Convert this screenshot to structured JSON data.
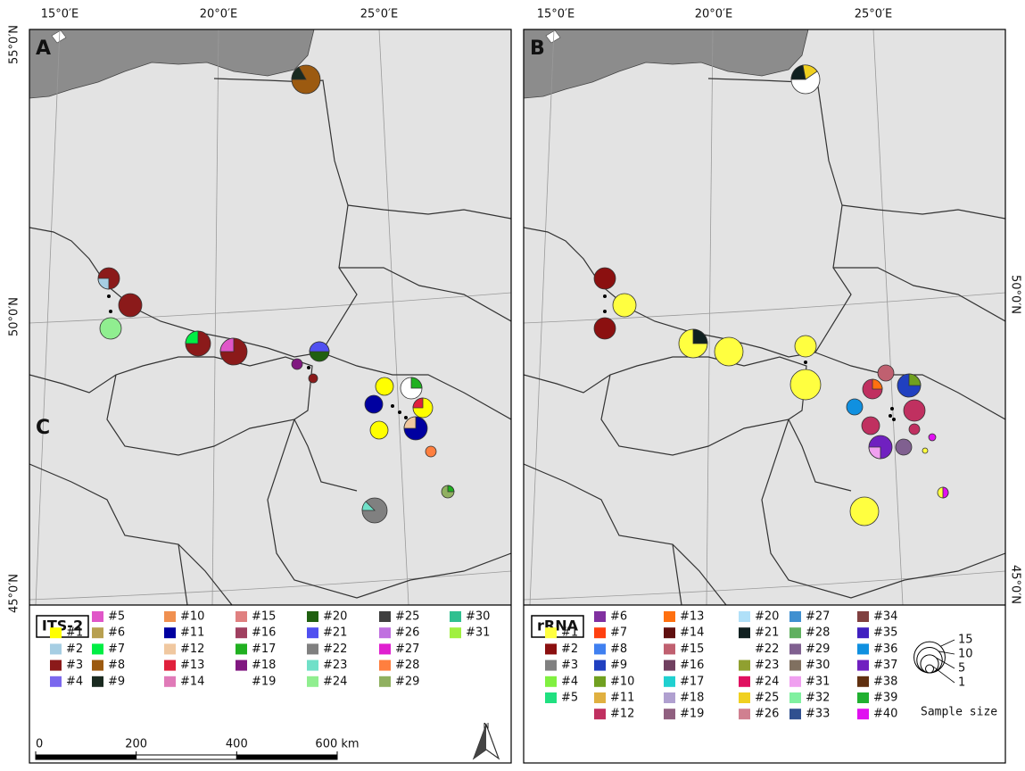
{
  "panels": [
    {
      "label": "A",
      "legend": {
        "title": "ITS-2",
        "items": [
          {
            "label": "#1",
            "color": "#ffff00"
          },
          {
            "label": "#2",
            "color": "#a6cee3"
          },
          {
            "label": "#3",
            "color": "#8b1a1a"
          },
          {
            "label": "#4",
            "color": "#7b68ee"
          },
          {
            "label": "#5",
            "color": "#e056c8"
          },
          {
            "label": "#6",
            "color": "#b8a050"
          },
          {
            "label": "#7",
            "color": "#00ee44"
          },
          {
            "label": "#8",
            "color": "#9c5a10"
          },
          {
            "label": "#9",
            "color": "#1a2a20"
          },
          {
            "label": "#10",
            "color": "#f09050"
          },
          {
            "label": "#11",
            "color": "#0000a0"
          },
          {
            "label": "#12",
            "color": "#f0c8a0"
          },
          {
            "label": "#13",
            "color": "#e0203c"
          },
          {
            "label": "#14",
            "color": "#e07ab8"
          },
          {
            "label": "#15",
            "color": "#e08080"
          },
          {
            "label": "#16",
            "color": "#a04060"
          },
          {
            "label": "#17",
            "color": "#20b020"
          },
          {
            "label": "#18",
            "color": "#801880"
          },
          {
            "label": "#19",
            "color": "#ffffff"
          },
          {
            "label": "#20",
            "color": "#206010"
          },
          {
            "label": "#21",
            "color": "#5050f0"
          },
          {
            "label": "#22",
            "color": "#808080"
          },
          {
            "label": "#23",
            "color": "#70e0c8"
          },
          {
            "label": "#24",
            "color": "#90ee90"
          },
          {
            "label": "#25",
            "color": "#404040"
          },
          {
            "label": "#26",
            "color": "#c070e0"
          },
          {
            "label": "#27",
            "color": "#e020d0"
          },
          {
            "label": "#28",
            "color": "#ff7f3f"
          },
          {
            "label": "#29",
            "color": "#90b060"
          },
          {
            "label": "#30",
            "color": "#30c090"
          },
          {
            "label": "#31",
            "color": "#a0f040"
          }
        ]
      }
    },
    {
      "label": "B",
      "legend": {
        "title": "rRNA",
        "items": [
          {
            "label": "#1",
            "color": "#ffff40"
          },
          {
            "label": "#2",
            "color": "#8b1010"
          },
          {
            "label": "#3",
            "color": "#808080"
          },
          {
            "label": "#4",
            "color": "#80f040"
          },
          {
            "label": "#5",
            "color": "#20e080"
          },
          {
            "label": "#6",
            "color": "#8030a0"
          },
          {
            "label": "#7",
            "color": "#ff4010"
          },
          {
            "label": "#8",
            "color": "#4080f0"
          },
          {
            "label": "#9",
            "color": "#2040c0"
          },
          {
            "label": "#10",
            "color": "#70a020"
          },
          {
            "label": "#11",
            "color": "#e0b040"
          },
          {
            "label": "#12",
            "color": "#c03060"
          },
          {
            "label": "#13",
            "color": "#ff7010"
          },
          {
            "label": "#14",
            "color": "#601010"
          },
          {
            "label": "#15",
            "color": "#c06070"
          },
          {
            "label": "#16",
            "color": "#704060"
          },
          {
            "label": "#17",
            "color": "#20d0d0"
          },
          {
            "label": "#18",
            "color": "#b0a0d0"
          },
          {
            "label": "#19",
            "color": "#906080"
          },
          {
            "label": "#20",
            "color": "#b0e0f8"
          },
          {
            "label": "#21",
            "color": "#102020"
          },
          {
            "label": "#22",
            "color": "#ffffff"
          },
          {
            "label": "#23",
            "color": "#90a030"
          },
          {
            "label": "#24",
            "color": "#e01060"
          },
          {
            "label": "#25",
            "color": "#f0d020"
          },
          {
            "label": "#26",
            "color": "#d08090"
          },
          {
            "label": "#27",
            "color": "#4090d0"
          },
          {
            "label": "#28",
            "color": "#60b060"
          },
          {
            "label": "#29",
            "color": "#806090"
          },
          {
            "label": "#30",
            "color": "#807060"
          },
          {
            "label": "#31",
            "color": "#f0a0f0"
          },
          {
            "label": "#32",
            "color": "#80f0a0"
          },
          {
            "label": "#33",
            "color": "#305090"
          },
          {
            "label": "#34",
            "color": "#804040"
          },
          {
            "label": "#35",
            "color": "#4020c0"
          },
          {
            "label": "#36",
            "color": "#1090e0"
          },
          {
            "label": "#37",
            "color": "#7020c0"
          },
          {
            "label": "#38",
            "color": "#603010"
          },
          {
            "label": "#39",
            "color": "#20b030"
          },
          {
            "label": "#40",
            "color": "#e010f0"
          }
        ]
      }
    }
  ],
  "inset_label": "C",
  "graticule": {
    "lon": [
      "15°0′E",
      "20°0′E",
      "25°0′E"
    ],
    "lat": [
      "55°0′N",
      "50°0′N",
      "45°0′N"
    ]
  },
  "sample_size": {
    "title": "Sample size",
    "values": [
      15,
      10,
      5,
      1
    ]
  },
  "scale_bar": {
    "ticks": [
      0,
      200,
      400,
      {
        "value": 600,
        "label": "600 km"
      }
    ]
  },
  "north": "N"
}
